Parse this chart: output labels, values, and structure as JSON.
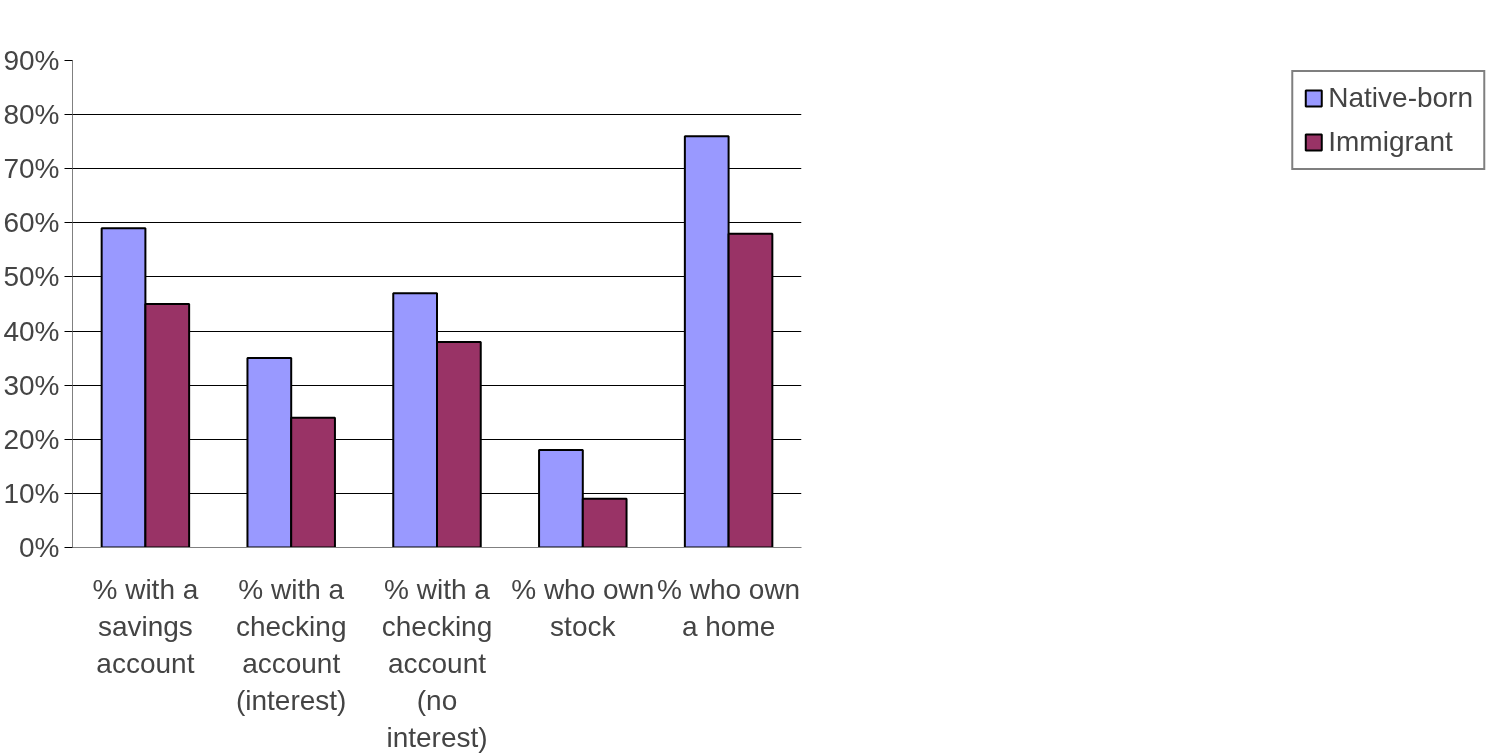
{
  "chart_data": {
    "type": "bar",
    "categories": [
      "% with a savings account",
      "% with a checking account (interest)",
      "% with a checking account (no interest)",
      "% who own stock",
      "% who own a home"
    ],
    "series": [
      {
        "name": "Native-born",
        "color": "#9999ff",
        "values": [
          59,
          35,
          47,
          18,
          76
        ]
      },
      {
        "name": "Immigrant",
        "color": "#993366",
        "values": [
          45,
          24,
          38,
          9,
          58
        ]
      }
    ],
    "ylim": [
      0,
      90
    ],
    "yticks": [
      {
        "value": 0,
        "label": "0%"
      },
      {
        "value": 10,
        "label": "10%"
      },
      {
        "value": 20,
        "label": "20%"
      },
      {
        "value": 30,
        "label": "30%"
      },
      {
        "value": 40,
        "label": "40%"
      },
      {
        "value": 50,
        "label": "50%"
      },
      {
        "value": 60,
        "label": "60%"
      },
      {
        "value": 70,
        "label": "70%"
      },
      {
        "value": 80,
        "label": "80%"
      },
      {
        "value": 90,
        "label": "90%"
      }
    ],
    "grid": "y",
    "legend": "right"
  }
}
